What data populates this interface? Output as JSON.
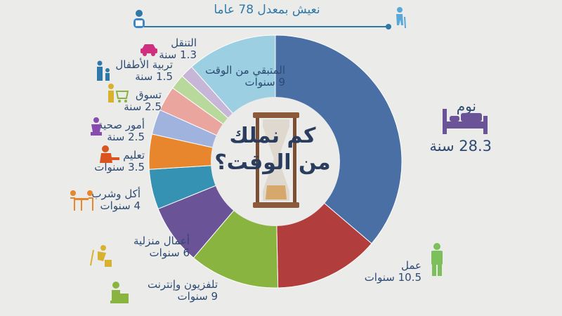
{
  "timeline": {
    "text": "نعيش بمعدل 78 عاما"
  },
  "center": {
    "line1": "كم نملك",
    "line2": "من الوقت؟"
  },
  "colors": {
    "sleep": "#4a6fa5",
    "work": "#b23d3d",
    "tv_internet": "#8ab440",
    "housework": "#6a5397",
    "eating": "#3592b3",
    "education": "#e7862d",
    "health": "#9fb3de",
    "shopping": "#e9a59e",
    "childcare": "#b9d89c",
    "transport": "#c7b6d7",
    "remaining": "#9ccfe2"
  },
  "labels": {
    "sleep": {
      "name": "نوم",
      "value": "28.3 سنة"
    },
    "work": {
      "name": "عمل",
      "value": "10.5 سنوات"
    },
    "tv_internet": {
      "name": "تلفزيون وإنترنت",
      "value": "9 سنوات"
    },
    "housework": {
      "name": "أعمال منزلية",
      "value": "6 سنوات"
    },
    "eating": {
      "name": "أكل وشرب",
      "value": "4 سنوات"
    },
    "education": {
      "name": "تعليم",
      "value": "3.5 سنوات"
    },
    "health": {
      "name": "أمور صحية",
      "value": "2.5 سنة"
    },
    "shopping": {
      "name": "تسوق",
      "value": "2.5 سنة"
    },
    "childcare": {
      "name": "تربية الأطفال",
      "value": "1.5 سنة"
    },
    "transport": {
      "name": "التنقل",
      "value": "1.3 سنة"
    },
    "remaining": {
      "name": "المتبقي من الوقت",
      "value": "9 سنوات"
    }
  },
  "chart_data": {
    "type": "pie",
    "title": "كم نملك من الوقت؟",
    "total_years": 78,
    "unit": "years",
    "slices": [
      {
        "key": "sleep",
        "label": "نوم",
        "value": 28.3
      },
      {
        "key": "work",
        "label": "عمل",
        "value": 10.5
      },
      {
        "key": "tv_internet",
        "label": "تلفزيون وإنترنت",
        "value": 9
      },
      {
        "key": "housework",
        "label": "أعمال منزلية",
        "value": 6
      },
      {
        "key": "eating",
        "label": "أكل وشرب",
        "value": 4
      },
      {
        "key": "education",
        "label": "تعليم",
        "value": 3.5
      },
      {
        "key": "health",
        "label": "أمور صحية",
        "value": 2.5
      },
      {
        "key": "shopping",
        "label": "تسوق",
        "value": 2.5
      },
      {
        "key": "childcare",
        "label": "تربية الأطفال",
        "value": 1.5
      },
      {
        "key": "transport",
        "label": "التنقل",
        "value": 1.3
      },
      {
        "key": "remaining",
        "label": "المتبقي من الوقت",
        "value": 9
      }
    ]
  }
}
